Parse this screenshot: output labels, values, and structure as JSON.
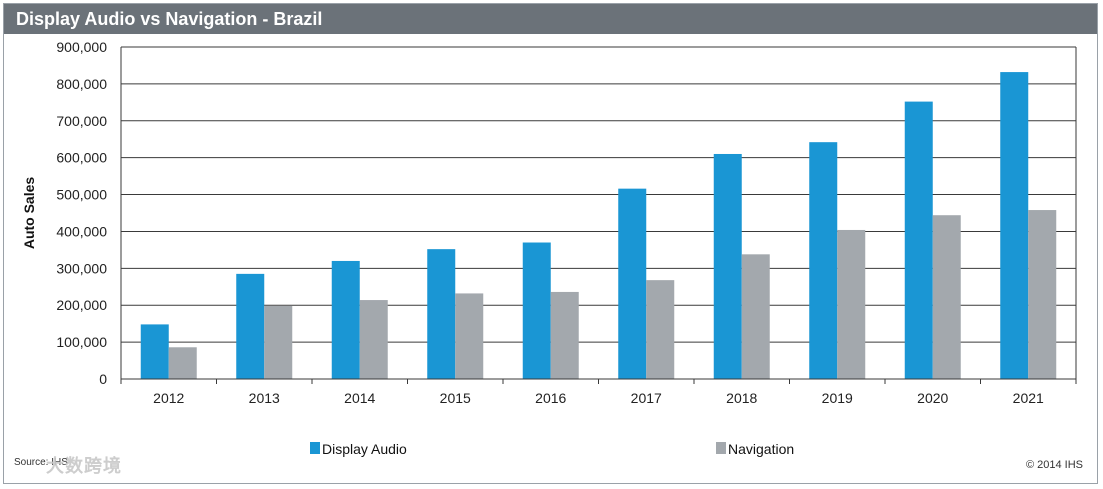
{
  "title": "Display Audio vs Navigation - Brazil",
  "footer": {
    "source": "Source: IHS",
    "watermark": "大数跨境",
    "copyright": "© 2014 IHS"
  },
  "colors": {
    "display_audio": "#1a96d4",
    "navigation": "#a3a8ad",
    "grid": "#3a3a3a",
    "title_bar": "#6b7279"
  },
  "chart_data": {
    "type": "bar",
    "title": "Display Audio vs Navigation - Brazil",
    "xlabel": "",
    "ylabel": "Auto Sales",
    "ylim": [
      0,
      900000
    ],
    "yticks": [
      0,
      100000,
      200000,
      300000,
      400000,
      500000,
      600000,
      700000,
      800000,
      900000
    ],
    "ytick_labels": [
      "0",
      "100,000",
      "200,000",
      "300,000",
      "400,000",
      "500,000",
      "600,000",
      "700,000",
      "800,000",
      "900,000"
    ],
    "grid": true,
    "legend_position": "bottom",
    "categories": [
      "2012",
      "2013",
      "2014",
      "2015",
      "2016",
      "2017",
      "2018",
      "2019",
      "2020",
      "2021"
    ],
    "series": [
      {
        "name": "Display Audio",
        "color": "#1a96d4",
        "values": [
          148000,
          285000,
          320000,
          352000,
          370000,
          516000,
          610000,
          642000,
          752000,
          832000
        ]
      },
      {
        "name": "Navigation",
        "color": "#a3a8ad",
        "values": [
          86000,
          198000,
          214000,
          232000,
          236000,
          268000,
          338000,
          404000,
          444000,
          458000
        ]
      }
    ]
  }
}
